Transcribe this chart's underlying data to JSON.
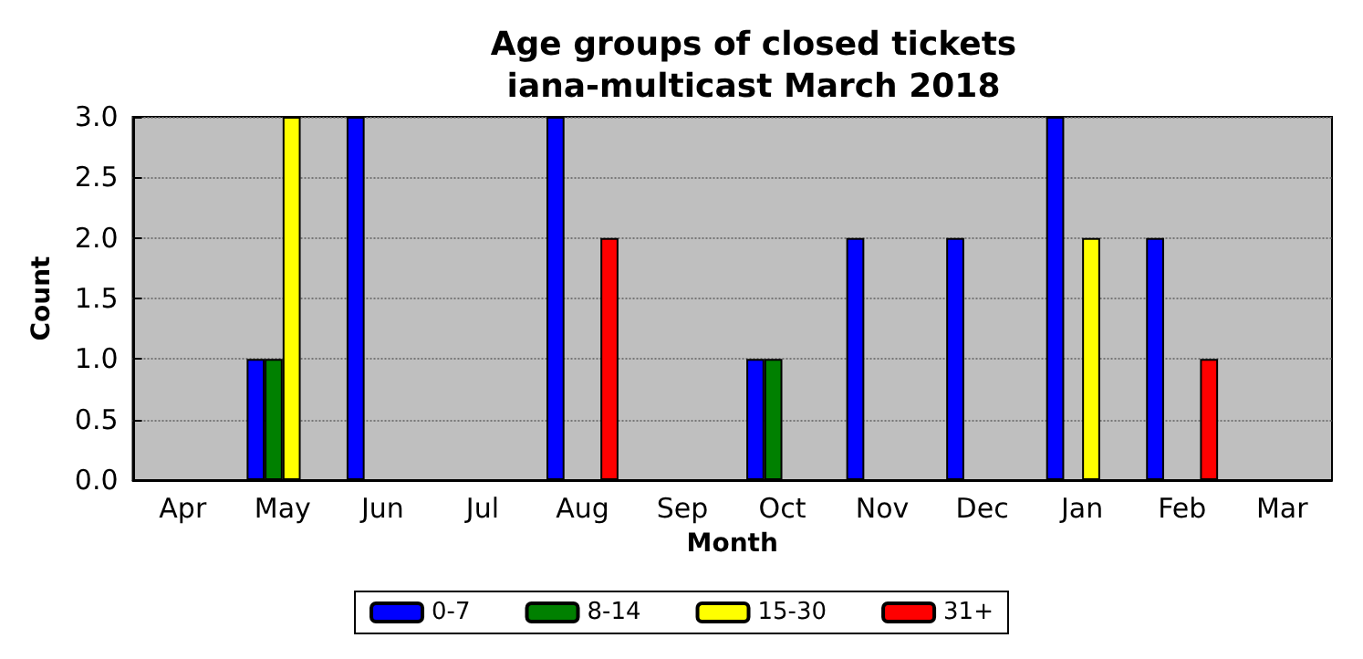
{
  "chart_data": {
    "type": "bar",
    "title": "Age groups of closed tickets\niana-multicast March 2018",
    "xlabel": "Month",
    "ylabel": "Count",
    "categories": [
      "Apr",
      "May",
      "Jun",
      "Jul",
      "Aug",
      "Sep",
      "Oct",
      "Nov",
      "Dec",
      "Jan",
      "Feb",
      "Mar"
    ],
    "series": [
      {
        "name": "0-7",
        "color": "#0000ff",
        "values": [
          0,
          1,
          3,
          0,
          3,
          0,
          1,
          2,
          2,
          3,
          2,
          0
        ]
      },
      {
        "name": "8-14",
        "color": "#008000",
        "values": [
          0,
          1,
          0,
          0,
          0,
          0,
          1,
          0,
          0,
          0,
          0,
          0
        ]
      },
      {
        "name": "15-30",
        "color": "#ffff00",
        "values": [
          0,
          3,
          0,
          0,
          0,
          0,
          0,
          0,
          0,
          2,
          0,
          0
        ]
      },
      {
        "name": "31+",
        "color": "#ff0000",
        "values": [
          0,
          0,
          0,
          0,
          2,
          0,
          0,
          0,
          0,
          0,
          1,
          0
        ]
      }
    ],
    "ylim": [
      0,
      3
    ],
    "yticks": [
      {
        "value": 0,
        "label": "0.0"
      },
      {
        "value": 0.5,
        "label": "0.5"
      },
      {
        "value": 1,
        "label": "1.0"
      },
      {
        "value": 1.5,
        "label": "1.5"
      },
      {
        "value": 2,
        "label": "2.0"
      },
      {
        "value": 2.5,
        "label": "2.5"
      },
      {
        "value": 3,
        "label": "3.0"
      }
    ],
    "grid": "y",
    "legend": "bottom"
  }
}
